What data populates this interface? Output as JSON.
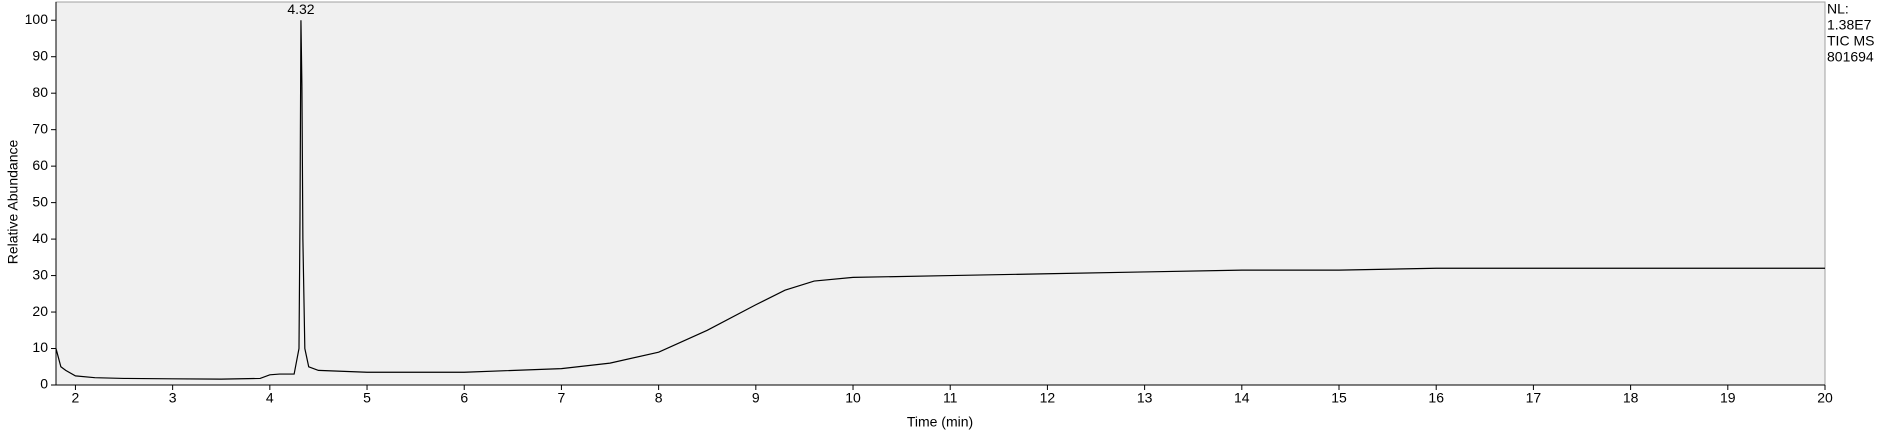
{
  "chart_data": {
    "type": "line",
    "x_label": "Time (min)",
    "y_label": "Relative Abundance",
    "x": [
      1.8,
      1.82,
      1.85,
      1.9,
      2.0,
      2.2,
      2.5,
      3.0,
      3.5,
      3.9,
      4.0,
      4.1,
      4.25,
      4.3,
      4.31,
      4.32,
      4.33,
      4.34,
      4.36,
      4.4,
      4.5,
      5.0,
      6.0,
      7.0,
      7.5,
      8.0,
      8.5,
      9.0,
      9.3,
      9.6,
      10.0,
      11.0,
      12.0,
      13.0,
      14.0,
      15.0,
      16.0,
      17.0,
      18.0,
      19.0,
      20.0
    ],
    "values": [
      10,
      8,
      5,
      4,
      2.5,
      2,
      1.8,
      1.7,
      1.6,
      1.8,
      2.8,
      3,
      3,
      10,
      45,
      100,
      82,
      40,
      10,
      5,
      4,
      3.5,
      3.5,
      4.5,
      6,
      9,
      15,
      22,
      26,
      28.5,
      29.5,
      30,
      30.5,
      31,
      31.5,
      31.5,
      32,
      32,
      32,
      32,
      32
    ],
    "color": "#000000",
    "xlim": [
      1.8,
      20
    ],
    "ylim": [
      0,
      105
    ],
    "xticks": [
      2,
      3,
      4,
      5,
      6,
      7,
      8,
      9,
      10,
      11,
      12,
      13,
      14,
      15,
      16,
      17,
      18,
      19,
      20
    ],
    "yticks": [
      0,
      10,
      20,
      30,
      40,
      50,
      60,
      70,
      80,
      90,
      100
    ],
    "annotations": [
      {
        "text": "4.32",
        "x": 4.32,
        "y": 100
      }
    ],
    "info_lines": [
      "NL:",
      "1.38E7",
      "TIC  MS",
      "801694"
    ]
  }
}
